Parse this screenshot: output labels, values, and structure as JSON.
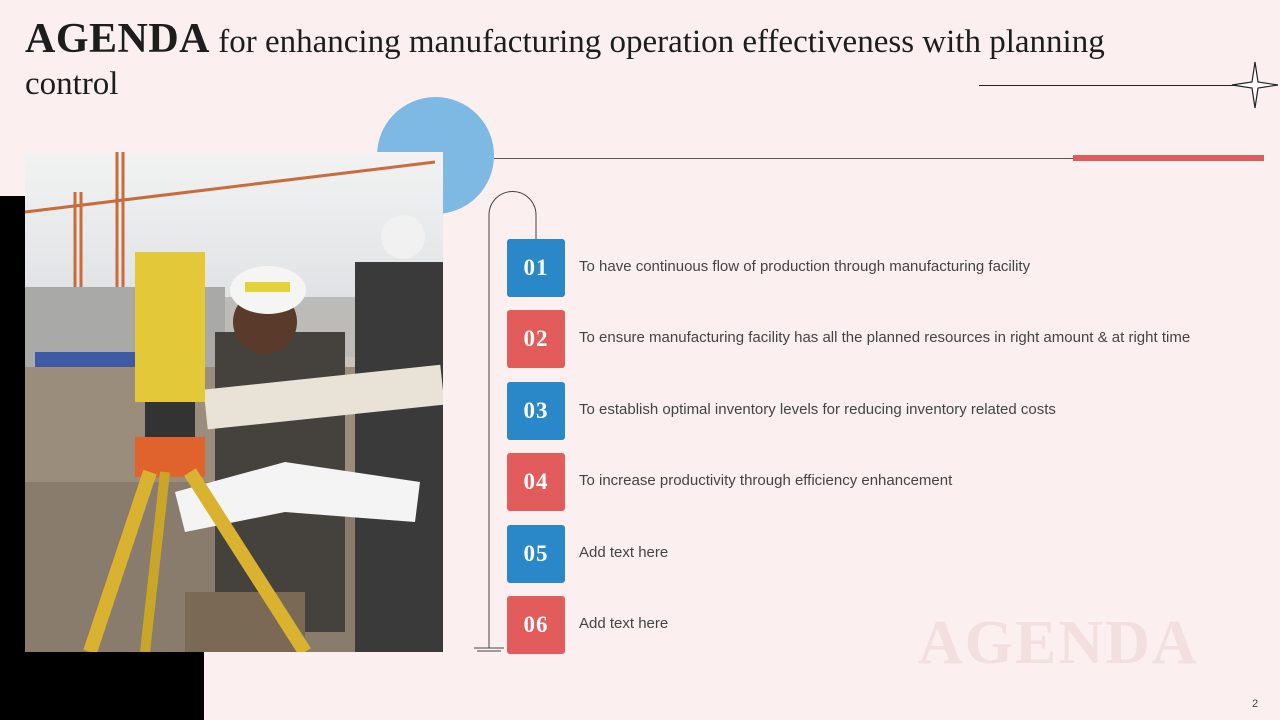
{
  "slide": {
    "title_bold": "AGENDA",
    "title_rest": "for enhancing manufacturing operation effectiveness with planning control",
    "watermark": "AGENDA",
    "page_number": "2"
  },
  "agenda_items": [
    {
      "number": "01",
      "text": "To have continuous flow of production through manufacturing facility",
      "color": "#2b88c8"
    },
    {
      "number": "02",
      "text": "To ensure manufacturing facility has all the planned resources in right amount & at right time",
      "color": "#e35c5c"
    },
    {
      "number": "03",
      "text": "To establish optimal inventory levels for reducing inventory related costs",
      "color": "#2b88c8"
    },
    {
      "number": "04",
      "text": "To increase productivity through efficiency enhancement",
      "color": "#e35c5c"
    },
    {
      "number": "05",
      "text": "Add text here",
      "color": "#2b88c8"
    },
    {
      "number": "06",
      "text": "Add text here",
      "color": "#e35c5c"
    }
  ],
  "colors": {
    "background": "#fbefef",
    "accent_blue": "#2b88c8",
    "accent_red": "#e35c5c",
    "circle_blue": "#7db9e3"
  },
  "image": {
    "alt": "construction-workers-with-surveying-instrument"
  }
}
